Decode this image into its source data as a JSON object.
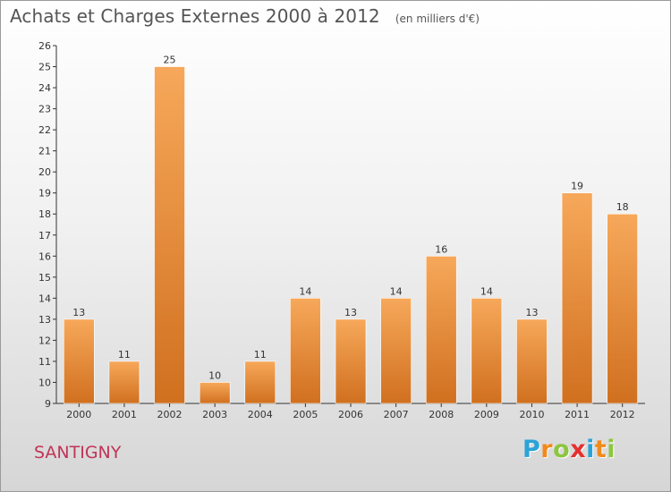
{
  "header": {
    "title": "Achats et Charges Externes 2000 à 2012",
    "subtitle": "(en milliers d'€)"
  },
  "footer": {
    "town": "SANTIGNY",
    "brand_letters": [
      {
        "ch": "P",
        "color": "#2aa3d8"
      },
      {
        "ch": "r",
        "color": "#f18a1c"
      },
      {
        "ch": "o",
        "color": "#8cc63f"
      },
      {
        "ch": "x",
        "color": "#e53030"
      },
      {
        "ch": "i",
        "color": "#2aa3d8"
      },
      {
        "ch": "t",
        "color": "#f18a1c"
      },
      {
        "ch": "i",
        "color": "#8cc63f"
      }
    ]
  },
  "chart_data": {
    "type": "bar",
    "title": "Achats et Charges Externes 2000 à 2012",
    "subtitle": "(en milliers d'€)",
    "categories": [
      "2000",
      "2001",
      "2002",
      "2003",
      "2004",
      "2005",
      "2006",
      "2007",
      "2008",
      "2009",
      "2010",
      "2011",
      "2012"
    ],
    "values": [
      13,
      11,
      25,
      10,
      11,
      14,
      13,
      14,
      16,
      14,
      13,
      19,
      18
    ],
    "ylim": [
      9,
      26
    ],
    "yticks": [
      9,
      10,
      11,
      12,
      13,
      14,
      15,
      16,
      17,
      18,
      19,
      20,
      21,
      22,
      23,
      24,
      25,
      26
    ],
    "grid": false,
    "legend": "none",
    "colors": {
      "bar_light": "#f7a85a",
      "bar_dark": "#d0701f",
      "axis": "#333333",
      "text": "#333333"
    }
  }
}
